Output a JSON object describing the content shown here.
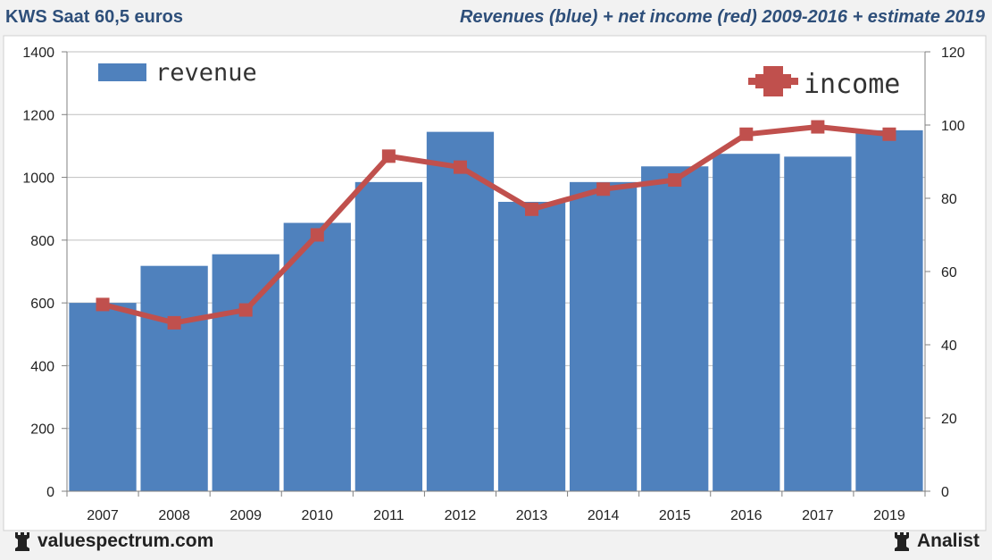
{
  "header": {
    "left_title": "KWS Saat 60,5 euros",
    "right_title": "Revenues (blue) + net income (red) 2009-2016 + estimate 2019"
  },
  "footer": {
    "left_brand": "valuespectrum.com",
    "right_brand": "Analist"
  },
  "colors": {
    "bar": "#4f81bd",
    "line": "#c0504d",
    "grid": "#bfbfbf",
    "header_text": "#2e4f7a"
  },
  "icons": [
    "rook-icon"
  ],
  "chart_data": {
    "type": "bar",
    "categories": [
      "2007",
      "2008",
      "2009",
      "2010",
      "2011",
      "2012",
      "2013",
      "2014",
      "2015",
      "2016",
      "2017",
      "2019"
    ],
    "series": [
      {
        "name": "revenue",
        "type": "bar",
        "axis": "left",
        "values": [
          600,
          718,
          755,
          855,
          985,
          1145,
          922,
          985,
          1035,
          1075,
          1066,
          1150
        ]
      },
      {
        "name": "income",
        "type": "line",
        "axis": "right",
        "values": [
          51,
          46,
          49.5,
          70,
          91.5,
          88.5,
          77,
          82.5,
          85,
          97.5,
          99.5,
          97.5
        ]
      }
    ],
    "y_left": {
      "min": 0,
      "max": 1400,
      "ticks": [
        0,
        200,
        400,
        600,
        800,
        1000,
        1200,
        1400
      ]
    },
    "y_right": {
      "min": 0,
      "max": 120,
      "ticks": [
        0,
        20,
        40,
        60,
        80,
        100,
        120
      ]
    },
    "legend": {
      "revenue_label": "revenue",
      "income_label": "income"
    },
    "grid": true
  }
}
